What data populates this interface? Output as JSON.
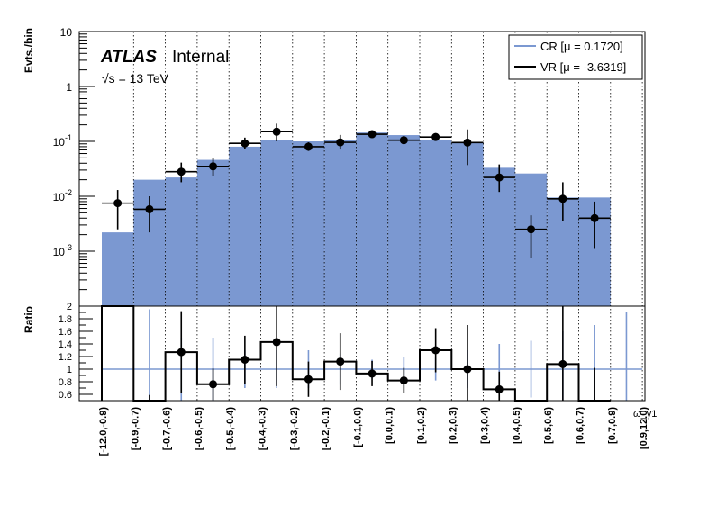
{
  "chart_data": [
    {
      "type": "bar",
      "panel": "upper",
      "ylabel": "Evts./bin",
      "yscale": "log",
      "ylim": [
        0.0001,
        10
      ],
      "yticks": [
        "10",
        "1",
        "10^-1",
        "10^-2",
        "10^-3"
      ],
      "atlas_label": "ATLAS",
      "atlas_status": "Internal",
      "energy_label": "√s = 13 TeV",
      "categories": [
        "[-12.0,-0.9)",
        "[-0.9,-0.7)",
        "[-0.7,-0.6)",
        "[-0.6,-0.5)",
        "[-0.5,-0.4)",
        "[-0.4,-0.3)",
        "[-0.3,-0.2)",
        "[-0.2,-0.1)",
        "[-0.1,0.0)",
        "[0.0,0.1)",
        "[0.1,0.2)",
        "[0.2,0.3)",
        "[0.3,0.4)",
        "[0.4,0.5)",
        "[0.5,0.6)",
        "[0.6,0.7)",
        "[0.7,0.9)",
        "[0.9,12.0)"
      ],
      "series": [
        {
          "name": "CR [μ = 0.1720]",
          "color": "#7b98d1",
          "style": "filled-histogram",
          "values": [
            0.0022,
            0.02,
            0.022,
            0.046,
            0.08,
            0.105,
            0.1,
            0.105,
            0.145,
            0.13,
            0.105,
            0.095,
            0.033,
            0.026,
            0.0095,
            0.0095,
            0,
            0
          ]
        },
        {
          "name": "VR [μ = -3.6319]",
          "color": "#000000",
          "style": "points-with-errors",
          "values": [
            0.0075,
            0.0058,
            0.028,
            0.035,
            0.092,
            0.15,
            0.08,
            0.096,
            0.135,
            0.105,
            0.12,
            0.095,
            0.022,
            0.0025,
            0.009,
            0.004,
            null,
            null
          ],
          "err_low": [
            0.005,
            0.0036,
            0.01,
            0.012,
            0.02,
            0.05,
            0.013,
            0.025,
            0.015,
            0.015,
            0.012,
            0.058,
            0.01,
            0.00175,
            0.0055,
            0.0029,
            null,
            null
          ],
          "err_high": [
            0.0055,
            0.0042,
            0.013,
            0.015,
            0.025,
            0.06,
            0.016,
            0.035,
            0.018,
            0.02,
            0.015,
            0.07,
            0.016,
            0.002,
            0.009,
            0.004,
            null,
            null
          ]
        }
      ],
      "legend": "top-right",
      "grid": "vertical-dotted"
    },
    {
      "type": "line",
      "panel": "lower",
      "ylabel": "Ratio",
      "xlabel": "ω_γ1",
      "ylim": [
        0.5,
        2.0
      ],
      "yticks": [
        "0.6",
        "0.8",
        "1",
        "1.2",
        "1.4",
        "1.6",
        "1.8",
        "2"
      ],
      "reference": {
        "value": 1.0,
        "color": "#7b98d1",
        "errors": [
          0,
          0.95,
          0.5,
          0.5,
          0.3,
          0.3,
          0.3,
          0.25,
          0.15,
          0.2,
          0.18,
          0.3,
          0.4,
          0.45,
          0.6,
          0.7,
          0.9,
          0
        ]
      },
      "ratio": {
        "color": "#000000",
        "values": [
          3.4,
          0.29,
          1.27,
          0.76,
          1.15,
          1.43,
          0.84,
          1.12,
          0.93,
          0.82,
          1.3,
          1.0,
          0.68,
          0.1,
          1.08,
          0.42,
          null,
          null
        ],
        "err": [
          1.0,
          0.3,
          0.65,
          0.25,
          0.38,
          0.7,
          0.28,
          0.45,
          0.2,
          0.2,
          0.35,
          0.7,
          0.28,
          0.12,
          0.95,
          0.6,
          null,
          null
        ]
      }
    }
  ]
}
